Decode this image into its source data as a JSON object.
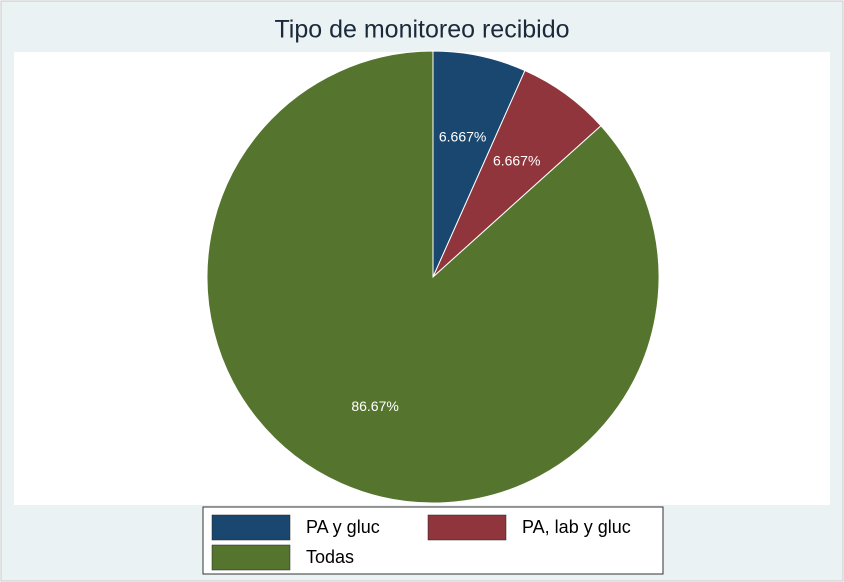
{
  "chart_data": {
    "type": "pie",
    "title": "Tipo de monitoreo recibido",
    "categories": [
      "PA y gluc",
      "PA, lab y gluc",
      "Todas"
    ],
    "values": [
      6.667,
      6.667,
      86.67
    ],
    "value_labels": [
      "6.667%",
      "6.667%",
      "86.67%"
    ],
    "colors": [
      "#1a476f",
      "#90353b",
      "#55752f"
    ],
    "legend": "bottom"
  }
}
